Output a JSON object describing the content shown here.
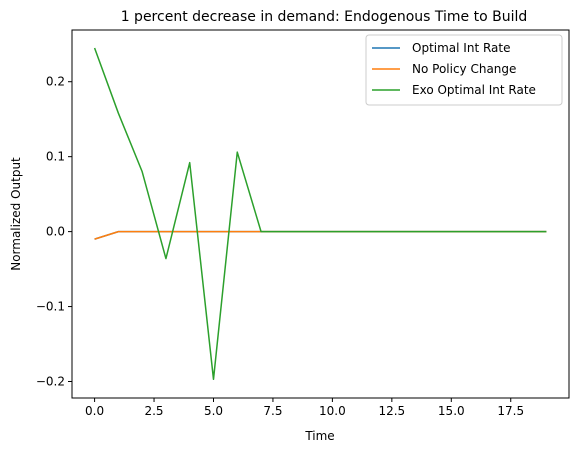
{
  "chart_data": {
    "type": "line",
    "title": "1 percent decrease in demand: Endogenous Time to Build",
    "xlabel": "Time",
    "ylabel": "Normalized Output",
    "xlim": [
      -0.95,
      19.95
    ],
    "ylim": [
      -0.222,
      0.269
    ],
    "xticks": [
      0.0,
      2.5,
      5.0,
      7.5,
      10.0,
      12.5,
      15.0,
      17.5
    ],
    "xtick_labels": [
      "0.0",
      "2.5",
      "5.0",
      "7.5",
      "10.0",
      "12.5",
      "15.0",
      "17.5"
    ],
    "yticks": [
      -0.2,
      -0.1,
      0.0,
      0.1,
      0.2
    ],
    "ytick_labels": [
      "−0.2",
      "−0.1",
      "0.0",
      "0.1",
      "0.2"
    ],
    "grid": false,
    "legend_position": "top-right",
    "x": [
      0,
      1,
      2,
      3,
      4,
      5,
      6,
      7,
      8,
      9,
      10,
      11,
      12,
      13,
      14,
      15,
      16,
      17,
      18,
      19
    ],
    "series": [
      {
        "name": "Optimal Int Rate",
        "color": "#1f77b4",
        "values": [
          -0.01,
          0,
          0,
          0,
          0,
          0,
          0,
          0,
          0,
          0,
          0,
          0,
          0,
          0,
          0,
          0,
          0,
          0,
          0,
          0
        ]
      },
      {
        "name": "No Policy Change",
        "color": "#ff7f0e",
        "values": [
          -0.01,
          0,
          0,
          0,
          0,
          0,
          0,
          0,
          0,
          0,
          0,
          0,
          0,
          0,
          0,
          0,
          0,
          0,
          0,
          0
        ]
      },
      {
        "name": "Exo Optimal Int Rate",
        "color": "#2ca02c",
        "values": [
          0.245,
          0.158,
          0.08,
          -0.036,
          0.092,
          -0.197,
          0.106,
          0,
          0,
          0,
          0,
          0,
          0,
          0,
          0,
          0,
          0,
          0,
          0,
          0
        ]
      }
    ]
  }
}
